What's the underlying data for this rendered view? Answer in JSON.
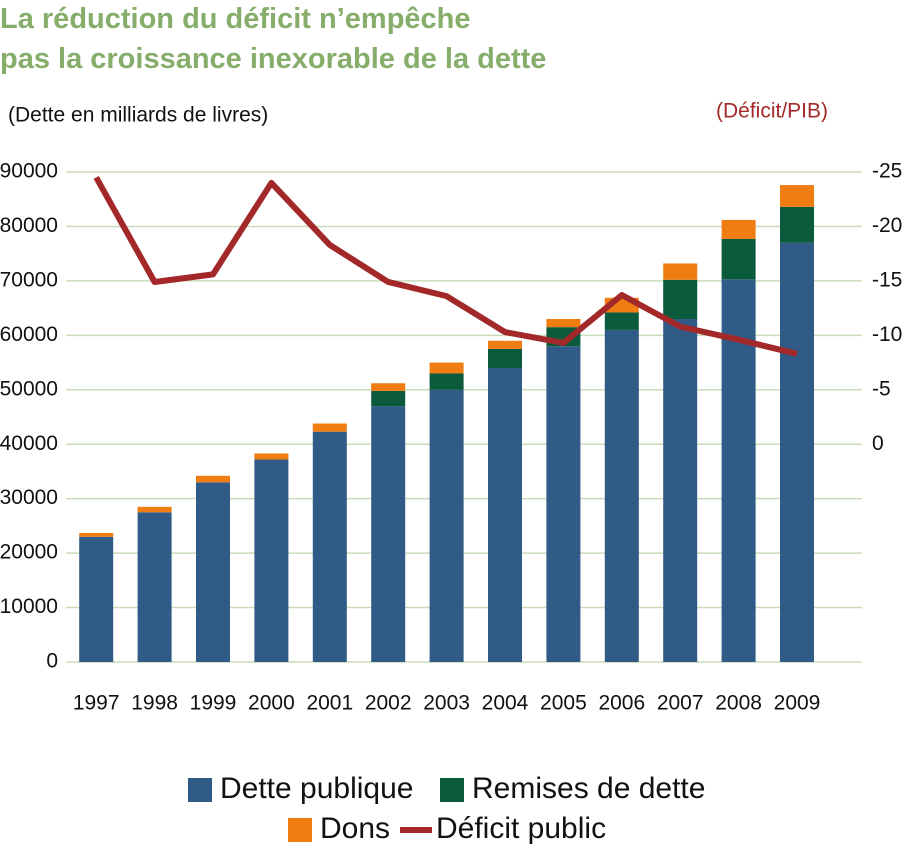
{
  "chart_data": {
    "type": "bar",
    "stacked": true,
    "title": [
      "La réduction du déficit n’empêche",
      "pas la croissance inexorable de la dette"
    ],
    "y_label": "(Dette en milliards de livres)",
    "y2_label": "(Déficit/PIB)",
    "categories": [
      "1997",
      "1998",
      "1999",
      "2000",
      "2001",
      "2002",
      "2003",
      "2004",
      "2005",
      "2006",
      "2007",
      "2008",
      "2009"
    ],
    "series": [
      {
        "name": "Dette publique",
        "type": "bar",
        "color": "#2f5b86",
        "values": [
          23000,
          27500,
          33000,
          37200,
          42300,
          47000,
          50000,
          54000,
          58000,
          61000,
          63000,
          70300,
          77000
        ]
      },
      {
        "name": "Remises de dette",
        "type": "bar",
        "color": "#0b5a3b",
        "values": [
          0,
          0,
          0,
          0,
          0,
          2800,
          3000,
          3500,
          3500,
          3200,
          7200,
          7400,
          6600
        ]
      },
      {
        "name": "Dons",
        "type": "bar",
        "color": "#f07d12",
        "values": [
          700,
          1000,
          1200,
          1100,
          1500,
          1400,
          2000,
          1500,
          1500,
          2700,
          3000,
          3500,
          4000
        ]
      },
      {
        "name": "Déficit public",
        "type": "line",
        "axis": "y2",
        "color": "#a3282a",
        "values": [
          -24.5,
          -14.9,
          -15.6,
          -24.0,
          -18.3,
          -14.9,
          -13.6,
          -10.3,
          -9.3,
          -13.7,
          -10.8,
          -9.6,
          -8.3
        ]
      }
    ],
    "ylim": [
      0,
      90000
    ],
    "yticks": [
      0,
      10000,
      20000,
      30000,
      40000,
      50000,
      60000,
      70000,
      80000,
      90000
    ],
    "y2lim": [
      20,
      -25
    ],
    "y2ticks": [
      -25,
      -20,
      -15,
      -10,
      -5,
      0
    ],
    "grid": true,
    "legend": "bottom"
  }
}
